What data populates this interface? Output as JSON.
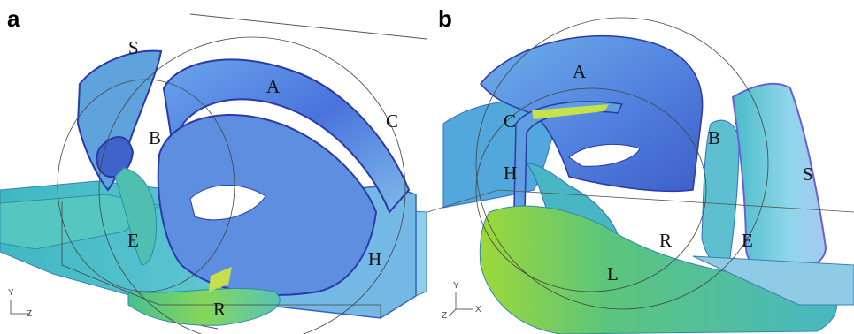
{
  "panels": [
    {
      "id": "a",
      "letter": "a",
      "labels": {
        "S": "S",
        "A": "A",
        "B": "B",
        "C": "C",
        "E": "E",
        "H": "H",
        "R": "R"
      },
      "axes": {
        "y": "Y",
        "z": "Z"
      }
    },
    {
      "id": "b",
      "letter": "b",
      "labels": {
        "A": "A",
        "C": "C",
        "H": "H",
        "B": "B",
        "S": "S",
        "R": "R",
        "E": "E",
        "L": "L"
      },
      "axes": {
        "y": "Y",
        "z": "Z",
        "x": "X"
      }
    }
  ],
  "colors": {
    "surface_blue": "#4a6fd8",
    "surface_light": "#7fc6e8",
    "surface_cyan": "#46c1c9",
    "surface_green": "#7ed43a",
    "surface_yellow": "#cde33a",
    "edge_dark": "#2a3aa8"
  }
}
